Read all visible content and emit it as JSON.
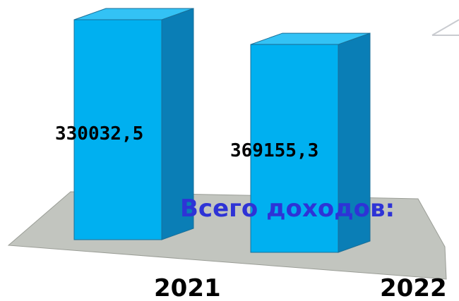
{
  "chart_data": {
    "type": "bar",
    "categories": [
      "2021",
      "2022"
    ],
    "series": [
      {
        "name": "Всего доходов:",
        "values": [
          330032.5,
          369155.3
        ]
      }
    ],
    "data_labels": [
      "330032,5",
      "369155,3"
    ],
    "ylim": [
      0,
      400000
    ],
    "grid": false,
    "legend": "none",
    "colors": {
      "bar_front": "#00b0f0",
      "bar_side": "#0a7eb6",
      "bar_top": "#33c2f5",
      "bar_edge": "#1a6f98",
      "floor": "#c2c5bf",
      "floor_edge": "#9a9d96",
      "series_label": "#2e33d6",
      "axis_line": "#c9cbd0"
    }
  }
}
